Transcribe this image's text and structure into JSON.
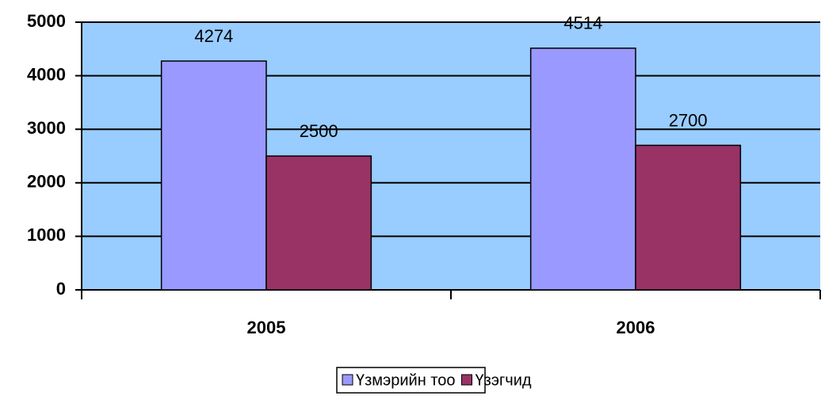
{
  "chart_data": {
    "type": "bar",
    "categories": [
      "2005",
      "2006"
    ],
    "series": [
      {
        "name": "Үзмэрийн тоо",
        "color": "#9999ff",
        "values": [
          4274,
          4514
        ]
      },
      {
        "name": "Үзэгчид",
        "color": "#993366",
        "values": [
          2500,
          2700
        ]
      }
    ],
    "ylim": [
      0,
      5000
    ],
    "yticks": [
      0,
      1000,
      2000,
      3000,
      4000,
      5000
    ],
    "grid": true,
    "legend": "bottom",
    "plot_background": "#99ccff"
  }
}
